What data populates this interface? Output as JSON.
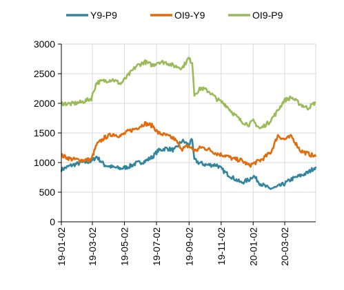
{
  "chart_data": {
    "type": "line",
    "title": "",
    "xlabel": "",
    "ylabel": "",
    "ylim": [
      0,
      3000
    ],
    "y_ticks": [
      0,
      500,
      1000,
      1500,
      2000,
      2500,
      3000
    ],
    "y_tick_labels": [
      "0",
      "500",
      "1000",
      "1500",
      "2000",
      "2500",
      "3000"
    ],
    "x_range": [
      "2019-01-02",
      "2020-04-30"
    ],
    "x_ticks": [
      "2019-01-02",
      "2019-03-02",
      "2019-05-02",
      "2019-07-02",
      "2019-09-02",
      "2019-11-02",
      "2020-01-02",
      "2020-03-02"
    ],
    "x_tick_labels": [
      "19-01-02",
      "19-03-02",
      "19-05-02",
      "19-07-02",
      "19-09-02",
      "19-11-02",
      "20-01-02",
      "20-03-02"
    ],
    "grid": {
      "x": true,
      "y": true
    },
    "legend_position": "top",
    "series": [
      {
        "name": "Y9-P9",
        "color": "#31859c",
        "points": [
          [
            "2019-01-02",
            880
          ],
          [
            "2019-01-20",
            950
          ],
          [
            "2019-02-10",
            1000
          ],
          [
            "2019-02-28",
            1020
          ],
          [
            "2019-03-10",
            1100
          ],
          [
            "2019-03-25",
            960
          ],
          [
            "2019-04-10",
            920
          ],
          [
            "2019-04-25",
            900
          ],
          [
            "2019-05-10",
            930
          ],
          [
            "2019-05-25",
            990
          ],
          [
            "2019-06-10",
            1020
          ],
          [
            "2019-06-25",
            1100
          ],
          [
            "2019-07-05",
            1200
          ],
          [
            "2019-07-20",
            1240
          ],
          [
            "2019-08-05",
            1210
          ],
          [
            "2019-08-20",
            1370
          ],
          [
            "2019-09-01",
            1300
          ],
          [
            "2019-09-08",
            1380
          ],
          [
            "2019-09-12",
            1050
          ],
          [
            "2019-09-20",
            1000
          ],
          [
            "2019-10-05",
            960
          ],
          [
            "2019-10-25",
            960
          ],
          [
            "2019-11-10",
            830
          ],
          [
            "2019-11-25",
            740
          ],
          [
            "2019-12-10",
            660
          ],
          [
            "2019-12-25",
            710
          ],
          [
            "2020-01-02",
            780
          ],
          [
            "2020-01-15",
            650
          ],
          [
            "2020-02-01",
            560
          ],
          [
            "2020-02-15",
            580
          ],
          [
            "2020-03-01",
            640
          ],
          [
            "2020-03-15",
            720
          ],
          [
            "2020-04-01",
            780
          ],
          [
            "2020-04-15",
            830
          ],
          [
            "2020-04-30",
            930
          ]
        ]
      },
      {
        "name": "OI9-Y9",
        "color": "#e36c0a",
        "points": [
          [
            "2019-01-02",
            1120
          ],
          [
            "2019-01-20",
            1060
          ],
          [
            "2019-02-10",
            1040
          ],
          [
            "2019-02-28",
            1050
          ],
          [
            "2019-03-10",
            1300
          ],
          [
            "2019-03-25",
            1420
          ],
          [
            "2019-04-10",
            1480
          ],
          [
            "2019-04-25",
            1450
          ],
          [
            "2019-05-10",
            1530
          ],
          [
            "2019-05-25",
            1580
          ],
          [
            "2019-06-10",
            1660
          ],
          [
            "2019-06-25",
            1620
          ],
          [
            "2019-07-05",
            1500
          ],
          [
            "2019-07-20",
            1460
          ],
          [
            "2019-08-05",
            1400
          ],
          [
            "2019-08-20",
            1230
          ],
          [
            "2019-09-01",
            1280
          ],
          [
            "2019-09-08",
            1230
          ],
          [
            "2019-09-15",
            1200
          ],
          [
            "2019-09-25",
            1260
          ],
          [
            "2019-10-10",
            1220
          ],
          [
            "2019-10-25",
            1150
          ],
          [
            "2019-11-10",
            1120
          ],
          [
            "2019-11-25",
            1060
          ],
          [
            "2019-12-10",
            1040
          ],
          [
            "2019-12-25",
            950
          ],
          [
            "2020-01-02",
            980
          ],
          [
            "2020-01-20",
            1060
          ],
          [
            "2020-02-05",
            1180
          ],
          [
            "2020-02-18",
            1460
          ],
          [
            "2020-03-01",
            1390
          ],
          [
            "2020-03-15",
            1440
          ],
          [
            "2020-04-01",
            1200
          ],
          [
            "2020-04-15",
            1150
          ],
          [
            "2020-04-30",
            1100
          ]
        ]
      },
      {
        "name": "OI9-P9",
        "color": "#9bbb59",
        "points": [
          [
            "2019-01-02",
            2000
          ],
          [
            "2019-01-20",
            1990
          ],
          [
            "2019-02-10",
            2020
          ],
          [
            "2019-02-28",
            2080
          ],
          [
            "2019-03-10",
            2350
          ],
          [
            "2019-03-25",
            2380
          ],
          [
            "2019-04-10",
            2400
          ],
          [
            "2019-04-25",
            2330
          ],
          [
            "2019-05-10",
            2480
          ],
          [
            "2019-05-25",
            2630
          ],
          [
            "2019-06-10",
            2700
          ],
          [
            "2019-06-25",
            2640
          ],
          [
            "2019-07-05",
            2700
          ],
          [
            "2019-07-20",
            2690
          ],
          [
            "2019-08-05",
            2630
          ],
          [
            "2019-08-20",
            2600
          ],
          [
            "2019-09-01",
            2760
          ],
          [
            "2019-09-08",
            2680
          ],
          [
            "2019-09-12",
            2150
          ],
          [
            "2019-09-25",
            2260
          ],
          [
            "2019-10-10",
            2200
          ],
          [
            "2019-10-25",
            2070
          ],
          [
            "2019-11-10",
            1980
          ],
          [
            "2019-11-25",
            1830
          ],
          [
            "2019-12-10",
            1700
          ],
          [
            "2019-12-25",
            1640
          ],
          [
            "2020-01-02",
            1700
          ],
          [
            "2020-01-15",
            1570
          ],
          [
            "2020-02-01",
            1680
          ],
          [
            "2020-02-15",
            1840
          ],
          [
            "2020-03-01",
            2050
          ],
          [
            "2020-03-15",
            2100
          ],
          [
            "2020-04-01",
            1980
          ],
          [
            "2020-04-15",
            1920
          ],
          [
            "2020-04-30",
            2020
          ]
        ]
      }
    ]
  }
}
